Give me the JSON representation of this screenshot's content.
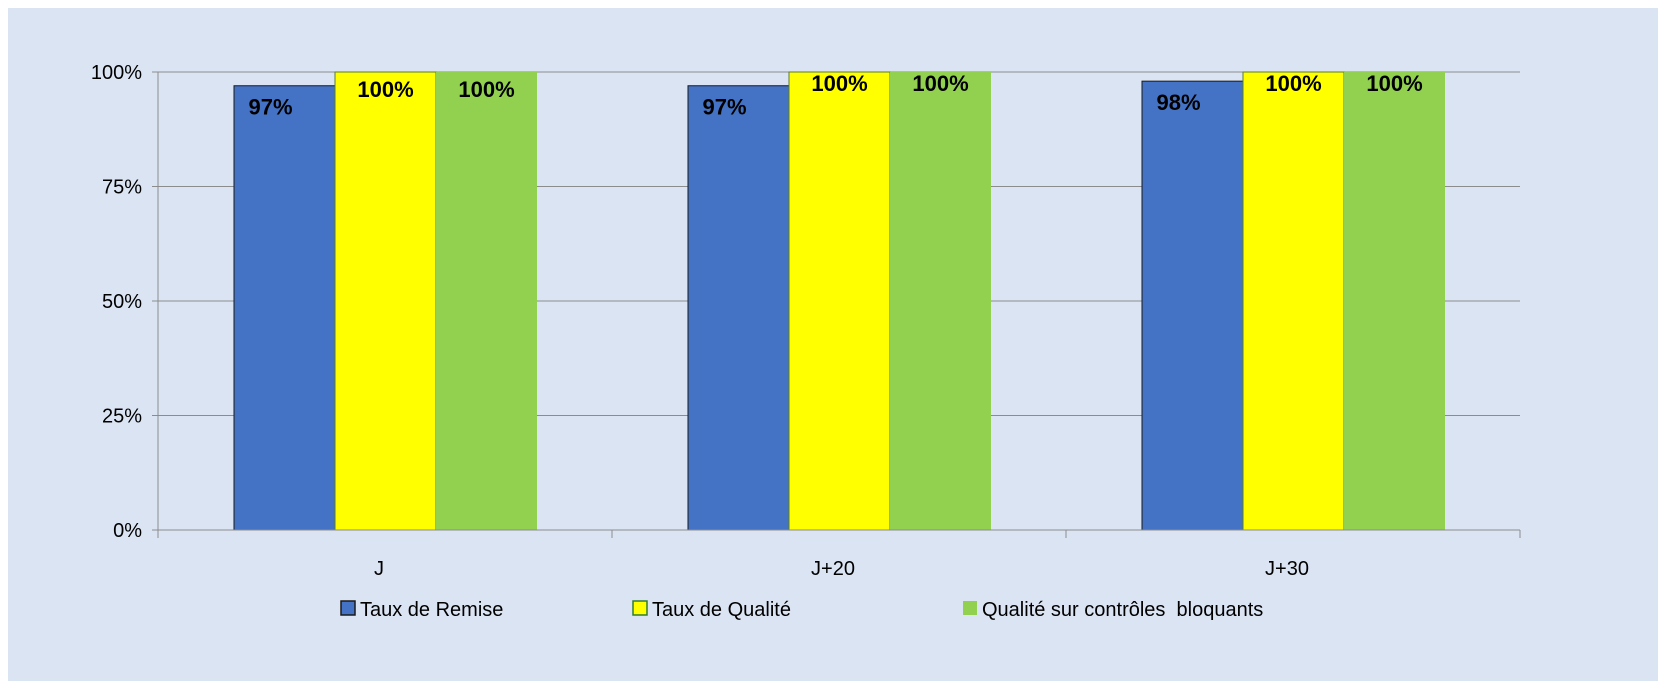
{
  "chart_data": {
    "type": "bar",
    "categories": [
      "J",
      "J+20",
      "J+30"
    ],
    "series": [
      {
        "name": "Taux de Remise",
        "values": [
          97,
          97,
          98
        ],
        "labels": [
          "97%",
          "97%",
          "98%"
        ],
        "color": "#4472c4"
      },
      {
        "name": "Taux de Qualité",
        "values": [
          100,
          100,
          100
        ],
        "labels": [
          "100%",
          "100%",
          "100%"
        ],
        "color": "#ffff00"
      },
      {
        "name": "Qualité sur contrôles  bloquants",
        "values": [
          100,
          100,
          100
        ],
        "labels": [
          "100%",
          "100%",
          "100%"
        ],
        "color": "#92d050"
      }
    ],
    "ylim": [
      0,
      100
    ],
    "yticks": [
      0,
      25,
      50,
      75,
      100
    ],
    "ytick_labels": [
      "0%",
      "25%",
      "50%",
      "75%",
      "100%"
    ],
    "grid": true,
    "legend_position": "bottom",
    "background": "#dbe4f3"
  }
}
